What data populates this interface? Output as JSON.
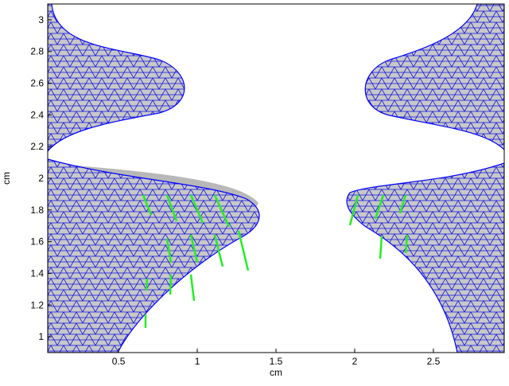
{
  "chart_data": {
    "type": "mesh",
    "x_label": "cm",
    "y_label": "cm",
    "xlim": [
      0.05,
      2.95
    ],
    "ylim": [
      0.9,
      3.1
    ],
    "xticks": [
      0.5,
      1,
      1.5,
      2,
      2.5
    ],
    "yticks": [
      1,
      1.2,
      1.4,
      1.6,
      1.8,
      2,
      2.2,
      2.4,
      2.6,
      2.8,
      3
    ]
  }
}
